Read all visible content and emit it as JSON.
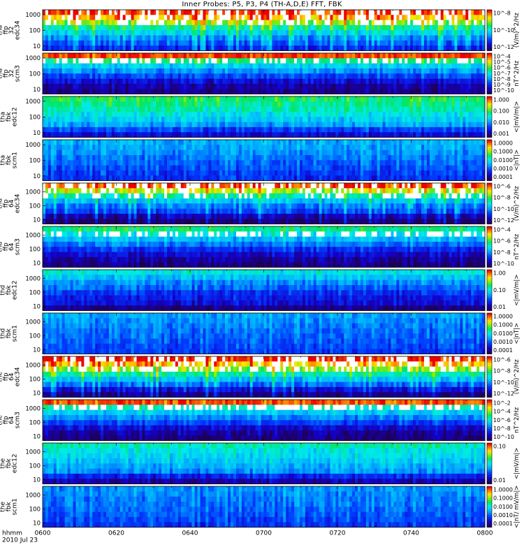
{
  "title": "Inner Probes: P5, P3, P4 (TH-A,D,E) FFT, FBK",
  "footer": {
    "label": "hhmm",
    "date": "2010 Jul 23"
  },
  "colors": {
    "frame": "#000000",
    "low": "#2a0080",
    "mid": "#00c0ff",
    "high": "#ff0000"
  },
  "chart_data": [
    {
      "type": "heatmap",
      "panel": 1,
      "ylabel": [
        "tha",
        "ffp",
        "32",
        "edc34"
      ],
      "ylim": [
        5,
        2048
      ],
      "yscale": "log",
      "yticks": [
        "1000",
        "100",
        "10"
      ],
      "colorbar_ticks": [
        "10^-8",
        "10^-10",
        "10^-12"
      ],
      "colorbar_unit": "(V/m)^2/Hz",
      "intensity_profile": [
        0.95,
        0.85,
        0.7,
        0.55,
        0.45,
        0.35,
        0.28,
        0.2
      ]
    },
    {
      "type": "heatmap",
      "panel": 2,
      "ylabel": [
        "tha",
        "ffp",
        "32",
        "scm3"
      ],
      "ylim": [
        5,
        2048
      ],
      "yscale": "log",
      "yticks": [
        "1000",
        "100",
        "10"
      ],
      "colorbar_ticks": [
        "10^-4",
        "10^-5",
        "10^-6",
        "10^-7",
        "10^-8",
        "10^-9",
        "10^-10"
      ],
      "colorbar_unit": "nT^2/Hz",
      "intensity_profile": [
        0.95,
        0.6,
        0.45,
        0.35,
        0.25,
        0.15,
        0.08,
        0.05
      ]
    },
    {
      "type": "heatmap",
      "panel": 3,
      "ylabel": [
        "tha",
        "fbk",
        "edc12"
      ],
      "ylim": [
        5,
        2048
      ],
      "yscale": "log",
      "yticks": [
        "1000",
        "100",
        "10"
      ],
      "colorbar_ticks": [
        "1.000",
        "0.100",
        "0.010",
        "0.001"
      ],
      "colorbar_unit": "<|mV/m|>",
      "intensity_profile": [
        0.62,
        0.58,
        0.55,
        0.5,
        0.45,
        0.38,
        0.25,
        0.15
      ]
    },
    {
      "type": "heatmap",
      "panel": 4,
      "ylabel": [
        "tha",
        "fbk",
        "scm1"
      ],
      "ylim": [
        5,
        2048
      ],
      "yscale": "log",
      "yticks": [
        "1000",
        "100",
        "10"
      ],
      "colorbar_ticks": [
        "1.0000",
        "0.1000",
        "0.0100",
        "0.0010",
        "0.0001"
      ],
      "colorbar_unit": "<|nT|>",
      "intensity_profile": [
        0.4,
        0.38,
        0.36,
        0.33,
        0.3,
        0.27,
        0.24,
        0.22
      ]
    },
    {
      "type": "heatmap",
      "panel": 5,
      "ylabel": [
        "thd",
        "ffp",
        "64",
        "edc34"
      ],
      "ylim": [
        5,
        4096
      ],
      "yscale": "log",
      "yticks": [
        "1000",
        "100",
        "10"
      ],
      "colorbar_ticks": [
        "10^-6",
        "10^-8",
        "10^-10",
        "10^-12"
      ],
      "colorbar_unit": "(V/m)^2/Hz",
      "intensity_profile": [
        0.95,
        0.75,
        0.55,
        0.42,
        0.32,
        0.25,
        0.1,
        0.02
      ]
    },
    {
      "type": "heatmap",
      "panel": 6,
      "ylabel": [
        "thd",
        "ffp",
        "64",
        "scm3"
      ],
      "ylim": [
        5,
        4096
      ],
      "yscale": "log",
      "yticks": [
        "1000",
        "100",
        "10"
      ],
      "colorbar_ticks": [
        "10^-4",
        "10^-6",
        "10^-8",
        "10^-10"
      ],
      "colorbar_unit": "nT^2/Hz",
      "intensity_profile": [
        0.6,
        0.5,
        0.42,
        0.32,
        0.22,
        0.14,
        0.08,
        0.05
      ]
    },
    {
      "type": "heatmap",
      "panel": 7,
      "ylabel": [
        "thd",
        "fbk",
        "edc12"
      ],
      "ylim": [
        5,
        4096
      ],
      "yscale": "log",
      "yticks": [
        "1000",
        "100",
        "10"
      ],
      "colorbar_ticks": [
        "1.00",
        "0.10",
        "0.01"
      ],
      "colorbar_unit": "<|mV/m|>",
      "intensity_profile": [
        0.5,
        0.42,
        0.35,
        0.3,
        0.22,
        0.18,
        0.15,
        0.05
      ]
    },
    {
      "type": "heatmap",
      "panel": 8,
      "ylabel": [
        "thd",
        "fbk",
        "scm1"
      ],
      "ylim": [
        5,
        4096
      ],
      "yscale": "log",
      "yticks": [
        "1000",
        "100",
        "10"
      ],
      "colorbar_ticks": [
        "1.0000",
        "0.1000",
        "0.0100",
        "0.0010",
        "0.0001"
      ],
      "colorbar_unit": "<|nT|>",
      "intensity_profile": [
        0.38,
        0.35,
        0.33,
        0.31,
        0.3,
        0.28,
        0.26,
        0.24
      ]
    },
    {
      "type": "heatmap",
      "panel": 9,
      "ylabel": [
        "the",
        "ffp",
        "64",
        "edc34"
      ],
      "ylim": [
        5,
        4096
      ],
      "yscale": "log",
      "yticks": [
        "1000",
        "100",
        "10"
      ],
      "colorbar_ticks": [
        "10^-6",
        "10^-8",
        "10^-10",
        "10^-12"
      ],
      "colorbar_unit": "(V/m)^2/Hz",
      "intensity_profile": [
        0.98,
        0.85,
        0.7,
        0.55,
        0.42,
        0.3,
        0.15,
        0.05
      ]
    },
    {
      "type": "heatmap",
      "panel": 10,
      "ylabel": [
        "the",
        "ffp",
        "64",
        "scm3"
      ],
      "ylim": [
        5,
        4096
      ],
      "yscale": "log",
      "yticks": [
        "1000",
        "100",
        "10"
      ],
      "colorbar_ticks": [
        "10^-2",
        "10^-4",
        "10^-6",
        "10^-8",
        "10^-10"
      ],
      "colorbar_unit": "nT^2/Hz",
      "intensity_profile": [
        0.95,
        0.55,
        0.45,
        0.35,
        0.25,
        0.15,
        0.08,
        0.05
      ]
    },
    {
      "type": "heatmap",
      "panel": 11,
      "ylabel": [
        "the",
        "fbk",
        "edc12"
      ],
      "ylim": [
        5,
        4096
      ],
      "yscale": "log",
      "yticks": [
        "1000",
        "100",
        "10"
      ],
      "colorbar_ticks": [
        "0.10",
        "0.01"
      ],
      "colorbar_unit": "<|mV/m|>",
      "intensity_profile": [
        0.55,
        0.5,
        0.47,
        0.44,
        0.4,
        0.36,
        0.2,
        0.1
      ]
    },
    {
      "type": "heatmap",
      "panel": 12,
      "ylabel": [
        "the",
        "fbk",
        "scm1"
      ],
      "ylim": [
        5,
        4096
      ],
      "yscale": "log",
      "yticks": [
        "1000",
        "100",
        "10"
      ],
      "colorbar_ticks": [
        "1.0000",
        "0.1000",
        "0.0100",
        "0.0010",
        "0.0001"
      ],
      "colorbar_unit": "<|nT/ mV/m|>",
      "intensity_profile": [
        0.36,
        0.35,
        0.33,
        0.32,
        0.3,
        0.28,
        0.26,
        0.24
      ]
    }
  ],
  "xaxis": {
    "ticks": [
      "0600",
      "0620",
      "0640",
      "0700",
      "0720",
      "0740",
      "0800"
    ],
    "range": [
      "0600",
      "0800"
    ]
  }
}
